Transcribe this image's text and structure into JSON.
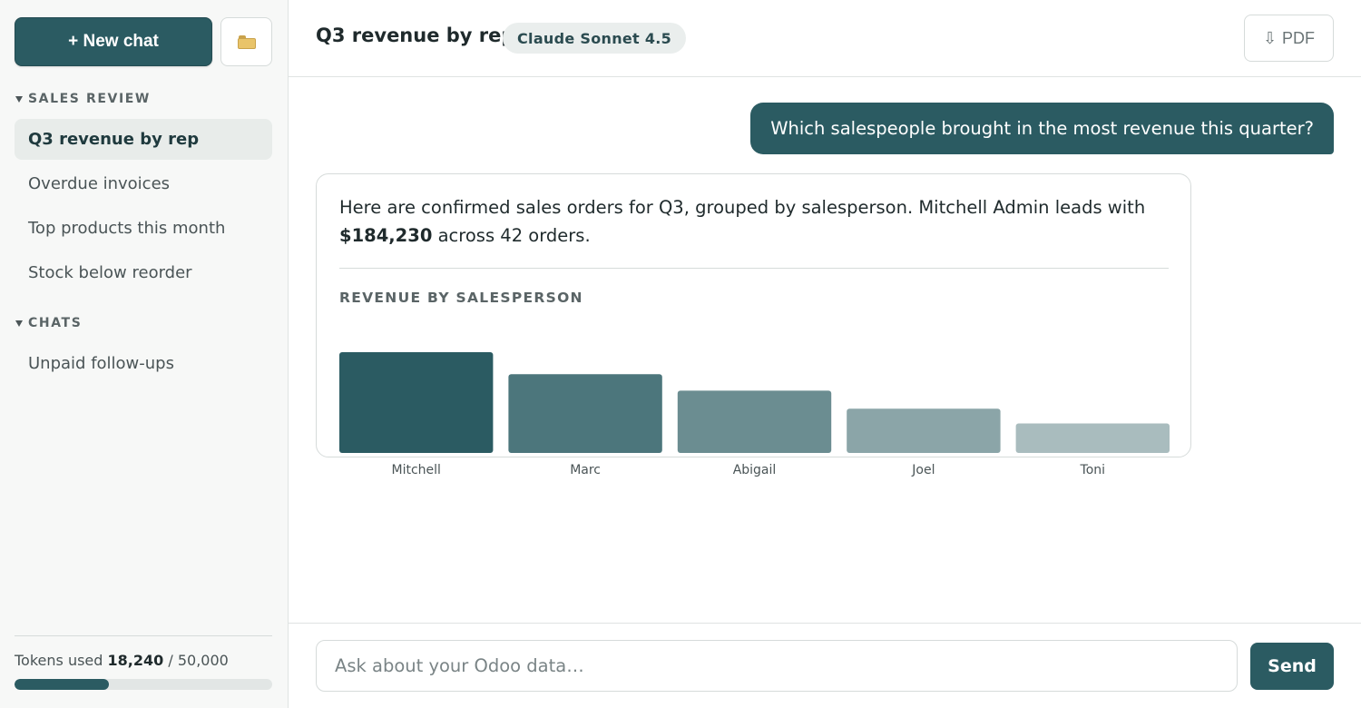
{
  "sidebar": {
    "new_chat_label": "+ New chat",
    "folder_icon": "folder-icon",
    "sections": [
      {
        "label": "SALES REVIEW",
        "items": [
          "Q3 revenue by rep",
          "Overdue invoices",
          "Top products this month",
          "Stock below reorder"
        ],
        "active": "Q3 revenue by rep"
      },
      {
        "label": "CHATS",
        "items": [
          "Unpaid follow-ups"
        ]
      }
    ],
    "tokens": {
      "prefix": "Tokens used",
      "used": "18,240",
      "separator": "/",
      "limit": "50,000",
      "used_fraction": 0.3648
    }
  },
  "header": {
    "title": "Q3 revenue by rep",
    "model": "Claude Sonnet 4.5",
    "pdf_label": "PDF",
    "pdf_icon": "download-arrow-icon"
  },
  "conversation": {
    "user_message": "Which salespeople brought in the most revenue this quarter?",
    "assistant": {
      "text_before": "Here are confirmed sales orders for Q3, grouped by salesperson. Mitchell Admin leads with",
      "highlight": "$184,230",
      "text_after": "across 42 orders."
    }
  },
  "chart_data": {
    "type": "bar",
    "title": "REVENUE BY SALESPERSON",
    "categories": [
      "Mitchell",
      "Marc",
      "Abigail",
      "Joel",
      "Toni"
    ],
    "values": [
      184230,
      144000,
      114000,
      81000,
      54000
    ],
    "colors": [
      "#2b5b62",
      "#4c767c",
      "#6b8d91",
      "#8ba5a8",
      "#a9bcbe"
    ],
    "ylim": [
      0,
      184230
    ],
    "grid": false,
    "legend": "none"
  },
  "composer": {
    "placeholder": "Ask about your Odoo data…",
    "value": "",
    "send_label": "Send"
  },
  "colors": {
    "accent": "#2b5b62",
    "sidebar_bg": "#f7f8f7",
    "border": "#d6dbda"
  }
}
